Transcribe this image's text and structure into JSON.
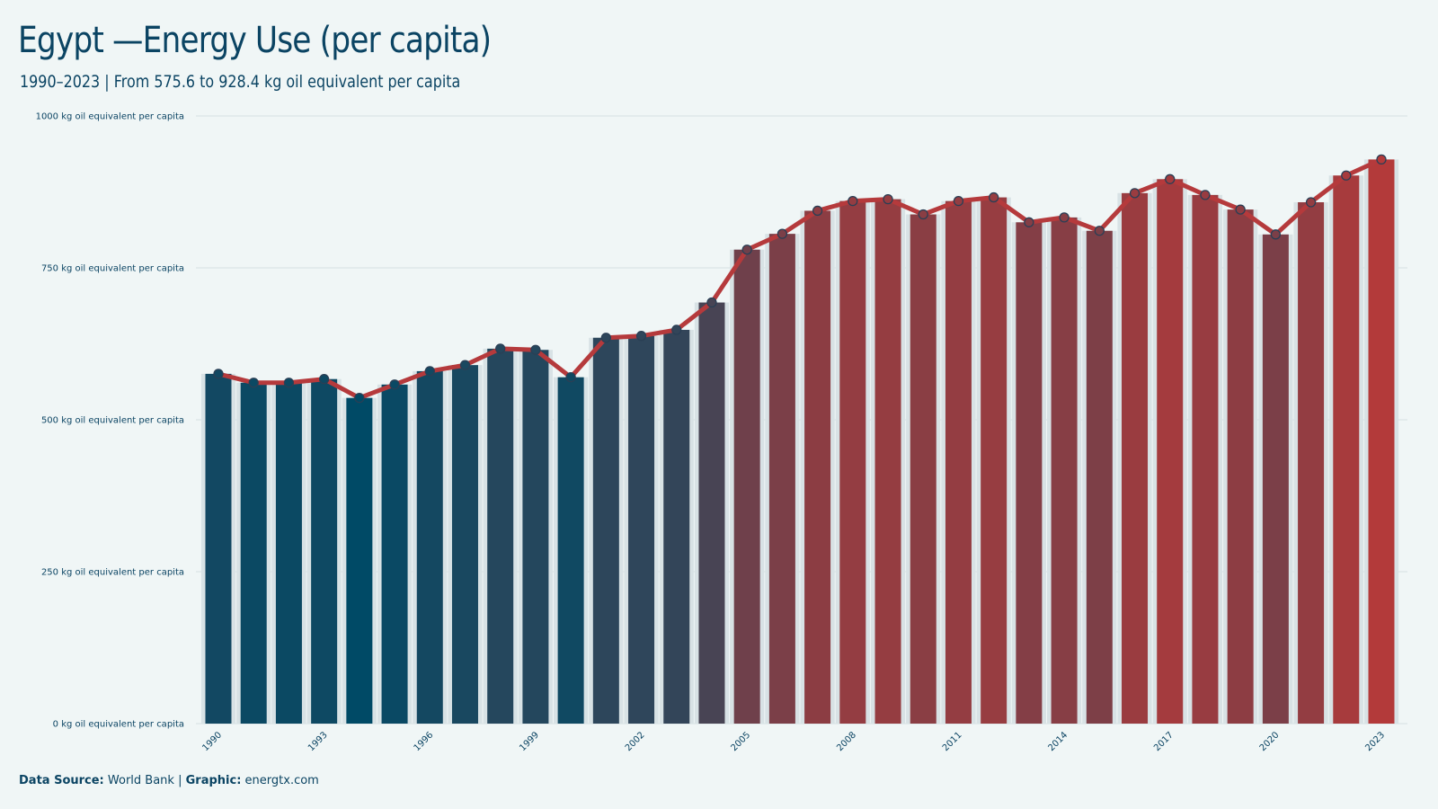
{
  "title": "Egypt —Energy Use (per capita)",
  "subtitle": "1990–2023 | From 575.6 to 928.4 kg oil equivalent per capita",
  "footer": {
    "source_label": "Data Source:",
    "source_value": "World Bank",
    "separator": "|",
    "graphic_label": "Graphic:",
    "graphic_value": "energtx.com"
  },
  "colors": {
    "background": "#f0f6f6",
    "text": "#0b4463",
    "line": "#b53a3c",
    "low_bar": "#004a66",
    "high_bar": "#b33a3a",
    "grid": "#d6e0e2"
  },
  "chart_data": {
    "type": "bar",
    "categories": [
      "1990",
      "1991",
      "1992",
      "1993",
      "1994",
      "1995",
      "1996",
      "1997",
      "1998",
      "1999",
      "2000",
      "2001",
      "2002",
      "2003",
      "2004",
      "2005",
      "2006",
      "2007",
      "2008",
      "2009",
      "2010",
      "2011",
      "2012",
      "2013",
      "2014",
      "2015",
      "2016",
      "2017",
      "2018",
      "2019",
      "2020",
      "2021",
      "2022",
      "2023"
    ],
    "values": [
      575.6,
      561,
      561,
      567,
      536,
      558,
      580,
      590,
      617,
      615,
      570,
      635,
      638,
      648,
      693,
      780,
      806,
      844,
      860,
      863,
      838,
      860,
      866,
      825,
      833,
      811,
      873,
      896,
      870,
      846,
      805,
      858,
      902,
      928.4
    ],
    "overlay_line": true,
    "ylim": [
      0,
      1000
    ],
    "yticks": [
      0,
      250,
      500,
      750,
      1000
    ],
    "ytick_labels": [
      "0 kg oil equivalent per capita",
      "250 kg oil equivalent per capita",
      "500 kg oil equivalent per capita",
      "750 kg oil equivalent per capita",
      "1000 kg oil equivalent per capita"
    ],
    "xtick_labels": [
      "1990",
      "1993",
      "1996",
      "1999",
      "2002",
      "2005",
      "2008",
      "2011",
      "2014",
      "2017",
      "2020",
      "2023"
    ],
    "grid": true,
    "legend": "none"
  }
}
